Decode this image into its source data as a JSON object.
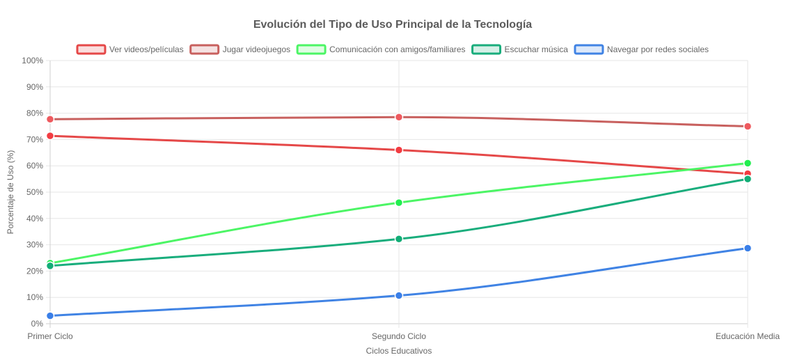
{
  "chart_data": {
    "type": "line",
    "title": "Evolución del Tipo de Uso Principal de la Tecnología",
    "xlabel": "Ciclos Educativos",
    "ylabel": "Porcentaje de Uso (%)",
    "categories": [
      "Primer Ciclo",
      "Segundo Ciclo",
      "Educación Media"
    ],
    "ylim": [
      0,
      100
    ],
    "yticks": [
      "0%",
      "10%",
      "20%",
      "30%",
      "40%",
      "50%",
      "60%",
      "70%",
      "80%",
      "90%",
      "100%"
    ],
    "grid": true,
    "legend_position": "top",
    "series": [
      {
        "name": "Ver videos/películas",
        "values": [
          71.4,
          66.0,
          57.0
        ],
        "color": "#e54848",
        "marker": "#f23c42"
      },
      {
        "name": "Jugar videojuegos",
        "values": [
          77.7,
          78.5,
          75.0
        ],
        "color": "#c8605e",
        "marker": "#ee5a5f"
      },
      {
        "name": "Comunicación con amigos/familiares",
        "values": [
          23.0,
          46.0,
          61.0
        ],
        "color": "#4cf565",
        "marker": "#22ee4f"
      },
      {
        "name": "Escuchar música",
        "values": [
          22.0,
          32.2,
          55.0
        ],
        "color": "#19ad7c",
        "marker": "#12ad76"
      },
      {
        "name": "Navegar por redes sociales",
        "values": [
          3.0,
          10.7,
          28.7
        ],
        "color": "#4083e4",
        "marker": "#3a7fe8"
      }
    ]
  }
}
